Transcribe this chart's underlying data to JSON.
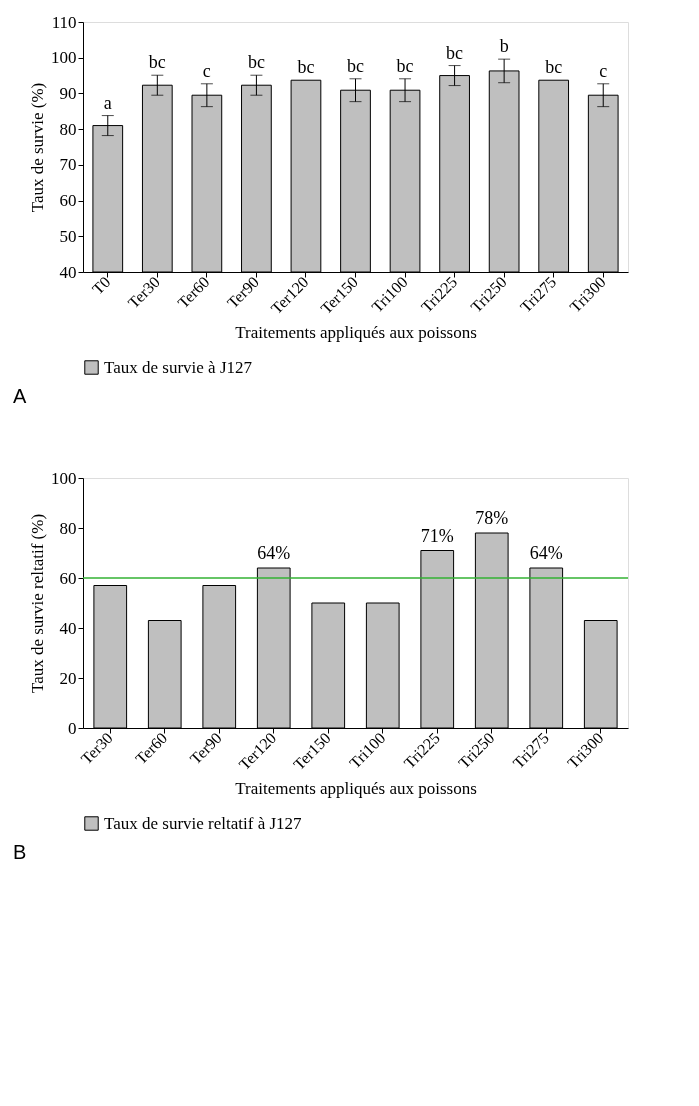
{
  "chart_data": [
    {
      "type": "bar",
      "xlabel": "Traitements appliqués  aux poissons",
      "ylabel": "Taux de survie (%)",
      "categories": [
        "T0",
        "Ter30",
        "Ter60",
        "Ter90",
        "Ter120",
        "Ter150",
        "Tri100",
        "Tri225",
        "Tri250",
        "Tri275",
        "Tri300"
      ],
      "series": [
        {
          "name": "Taux de survie à J127",
          "color": "#bfbfbf",
          "values": [
            81,
            92.3,
            89.5,
            92.3,
            93.7,
            90.9,
            90.9,
            95,
            96.3,
            93.7,
            89.5
          ],
          "errors": [
            2.8,
            2.8,
            3.2,
            2.8,
            null,
            3.2,
            3.2,
            2.8,
            3.3,
            null,
            3.2
          ]
        }
      ],
      "ylim": [
        40,
        110
      ],
      "yticks": [
        40,
        50,
        60,
        70,
        80,
        90,
        100,
        110
      ],
      "grid": false,
      "legend": "bottom",
      "annotations": [
        {
          "text": "a",
          "x": "T0",
          "y": 83.8
        },
        {
          "text": "bc",
          "x": "Ter30",
          "y": 95.1
        },
        {
          "text": "c",
          "x": "Ter60",
          "y": 92.7
        },
        {
          "text": "bc",
          "x": "Ter90",
          "y": 95.1
        },
        {
          "text": "bc",
          "x": "Ter120",
          "y": 93.7
        },
        {
          "text": "bc",
          "x": "Ter150",
          "y": 94.1
        },
        {
          "text": "bc",
          "x": "Tri100",
          "y": 94.1
        },
        {
          "text": "bc",
          "x": "Tri225",
          "y": 97.8
        },
        {
          "text": "b",
          "x": "Tri250",
          "y": 99.6
        },
        {
          "text": "bc",
          "x": "Tri275",
          "y": 93.7
        },
        {
          "text": "c",
          "x": "Tri300",
          "y": 92.7
        },
        "A"
      ]
    },
    {
      "type": "bar",
      "xlabel": "Traitements appliqués  aux poissons",
      "ylabel": "Taux de survie reltatif (%)",
      "categories": [
        "Ter30",
        "Ter60",
        "Ter90",
        "Ter120",
        "Ter150",
        "Tri100",
        "Tri225",
        "Tri250",
        "Tri275",
        "Tri300"
      ],
      "series": [
        {
          "name": "Taux de survie reltatif à J127",
          "color": "#bfbfbf",
          "values": [
            57,
            43,
            57,
            64,
            50,
            50,
            71,
            78,
            64,
            43
          ],
          "value_labels": [
            null,
            null,
            null,
            "64%",
            null,
            null,
            "71%",
            "78%",
            "64%",
            null
          ]
        }
      ],
      "ylim": [
        0,
        100
      ],
      "yticks": [
        0,
        20,
        40,
        60,
        80,
        100
      ],
      "grid": false,
      "legend": "bottom",
      "ref_lines": [
        {
          "axis": "y",
          "value": 60,
          "color": "#33b233"
        }
      ],
      "annotations": [
        "B"
      ]
    }
  ]
}
